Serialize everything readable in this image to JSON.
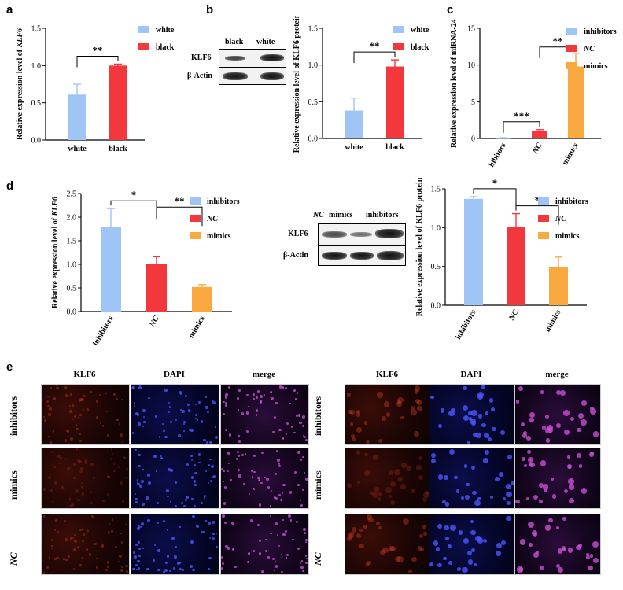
{
  "panels": {
    "a": "a",
    "b": "b",
    "c": "c",
    "d": "d",
    "e": "e"
  },
  "colors": {
    "blue": "#9ec5f5",
    "red": "#f2373d",
    "orange": "#f9a93f"
  },
  "blots": {
    "b": {
      "lanes": [
        "black",
        "white"
      ],
      "rows": [
        "KLF6",
        "β-Actin"
      ]
    },
    "d": {
      "lane_header_italic": "NC",
      "lanes_rest": [
        "mimics",
        "inhibitors"
      ],
      "rows": [
        "KLF6",
        "β-Actin"
      ]
    }
  },
  "fluorescence": {
    "columns": [
      "KLF6",
      "DAPI",
      "merge"
    ],
    "rows": [
      "inhibitors",
      "mimics",
      "NC"
    ]
  },
  "chart_data": [
    {
      "id": "a",
      "type": "bar",
      "categories": [
        "white",
        "black"
      ],
      "values": [
        0.61,
        1.0
      ],
      "errors": [
        0.14,
        0.02
      ],
      "colors": [
        "#9ec5f5",
        "#f2373d"
      ],
      "ylabel_prefix": "Relative expression level of ",
      "ylabel_italic": "KLF6",
      "ylim": [
        0,
        1.5
      ],
      "yticks": [
        "0.0",
        "0.5",
        "1.0",
        "1.5"
      ],
      "legend": [
        {
          "name": "white",
          "color": "#9ec5f5"
        },
        {
          "name": "black",
          "color": "#f2373d"
        }
      ],
      "legend_position": "right",
      "significance": [
        {
          "from": 0,
          "to": 1,
          "label": "**"
        }
      ]
    },
    {
      "id": "b",
      "type": "bar",
      "categories": [
        "white",
        "black"
      ],
      "values": [
        0.38,
        0.98
      ],
      "errors": [
        0.17,
        0.09
      ],
      "colors": [
        "#9ec5f5",
        "#f2373d"
      ],
      "ylabel_prefix": "Relative expression level of KLF6 protein",
      "ylabel_italic": "",
      "ylim": [
        0,
        1.5
      ],
      "yticks": [
        "0.0",
        "0.5",
        "1.0",
        "1.5"
      ],
      "legend": [
        {
          "name": "white",
          "color": "#9ec5f5"
        },
        {
          "name": "black",
          "color": "#f2373d"
        }
      ],
      "legend_position": "right",
      "significance": [
        {
          "from": 0,
          "to": 1,
          "label": "**"
        }
      ]
    },
    {
      "id": "c",
      "type": "bar",
      "categories": [
        "inhibitors",
        "NC",
        "mimics"
      ],
      "categories_display": [
        "hibitors",
        "NC",
        "mimics"
      ],
      "values": [
        0.05,
        1.0,
        9.8
      ],
      "errors": [
        0.05,
        0.2,
        1.8
      ],
      "colors": [
        "#9ec5f5",
        "#f2373d",
        "#f9a93f"
      ],
      "ylabel_prefix": "Relative expression level of miRNA-24",
      "ylabel_italic": "",
      "ylim": [
        0,
        15
      ],
      "yticks": [
        "0",
        "5",
        "10",
        "15"
      ],
      "legend": [
        {
          "name": "inhibitors",
          "color": "#9ec5f5"
        },
        {
          "name": "NC",
          "color": "#f2373d"
        },
        {
          "name": "mimics",
          "color": "#f9a93f"
        }
      ],
      "legend_position": "right",
      "significance": [
        {
          "from": 0,
          "to": 1,
          "label": "***"
        },
        {
          "from": 1,
          "to": 2,
          "label": "**"
        }
      ]
    },
    {
      "id": "d1",
      "type": "bar",
      "categories": [
        "inhibitors",
        "NC",
        "mimics"
      ],
      "values": [
        1.8,
        1.0,
        0.52
      ],
      "errors": [
        0.38,
        0.16,
        0.05
      ],
      "colors": [
        "#9ec5f5",
        "#f2373d",
        "#f9a93f"
      ],
      "ylabel_prefix": "Relative expression level of ",
      "ylabel_italic": "KLF6",
      "ylim": [
        0,
        2.5
      ],
      "yticks": [
        "0.0",
        "0.5",
        "1.0",
        "1.5",
        "2.0",
        "2.5"
      ],
      "legend": [
        {
          "name": "inhibitors",
          "color": "#9ec5f5"
        },
        {
          "name": "NC",
          "color": "#f2373d"
        },
        {
          "name": "mimics",
          "color": "#f9a93f"
        }
      ],
      "legend_position": "right",
      "significance": [
        {
          "from": 0,
          "to": 1,
          "label": "*"
        },
        {
          "from": 1,
          "to": 2,
          "label": "**"
        }
      ]
    },
    {
      "id": "d2",
      "type": "bar",
      "categories": [
        "inhibitors",
        "NC",
        "mimics"
      ],
      "values": [
        1.37,
        1.01,
        0.49
      ],
      "errors": [
        0.03,
        0.17,
        0.13
      ],
      "colors": [
        "#9ec5f5",
        "#f2373d",
        "#f9a93f"
      ],
      "ylabel_prefix": "Relative expression level of KLF6 protein",
      "ylabel_italic": "",
      "ylim": [
        0,
        1.5
      ],
      "yticks": [
        "0.0",
        "0.5",
        "1.0",
        "1.5"
      ],
      "legend": [
        {
          "name": "inhibitors",
          "color": "#9ec5f5"
        },
        {
          "name": "NC",
          "color": "#f2373d"
        },
        {
          "name": "mimics",
          "color": "#f9a93f"
        }
      ],
      "legend_position": "right",
      "significance": [
        {
          "from": 0,
          "to": 1,
          "label": "*"
        },
        {
          "from": 1,
          "to": 2,
          "label": "*"
        }
      ]
    }
  ]
}
